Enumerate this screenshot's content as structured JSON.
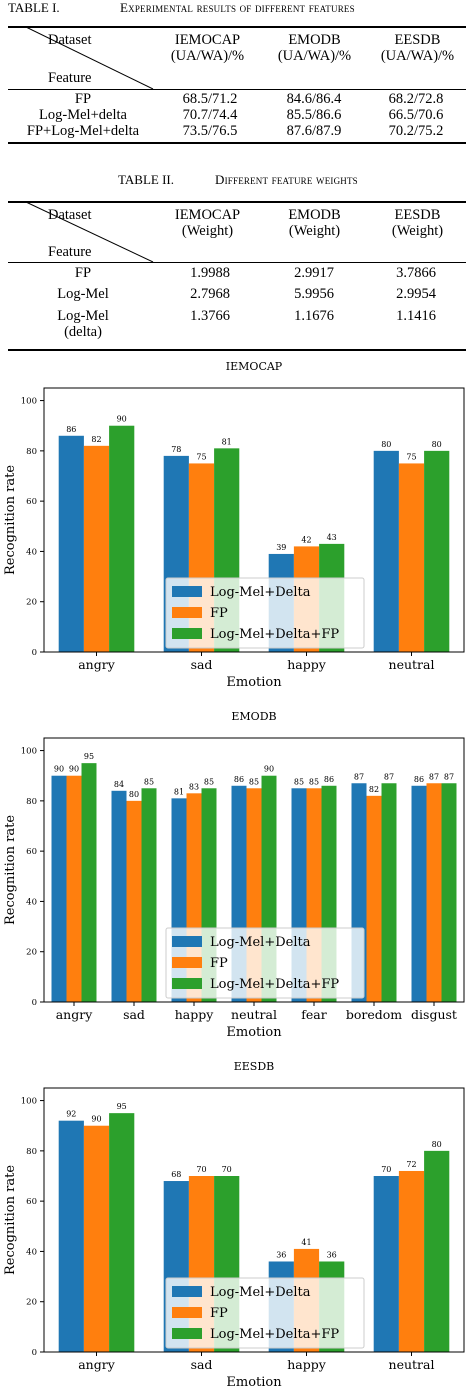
{
  "table1": {
    "caption_number": "TABLE I.",
    "caption_title": "Experimental results of different features",
    "corner_top": "Dataset",
    "corner_bottom": "Feature",
    "columns": [
      {
        "name": "IEMOCAP",
        "unit": "(UA/WA)/%"
      },
      {
        "name": "EMODB",
        "unit": "(UA/WA)/%"
      },
      {
        "name": "EESDB",
        "unit": "(UA/WA)/%"
      }
    ],
    "rows": [
      {
        "feature": "FP",
        "values": [
          "68.5/71.2",
          "84.6/86.4",
          "68.2/72.8"
        ]
      },
      {
        "feature": "Log-Mel+delta",
        "values": [
          "70.7/74.4",
          "85.5/86.6",
          "66.5/70.6"
        ]
      },
      {
        "feature": "FP+Log-Mel+delta",
        "values": [
          "73.5/76.5",
          "87.6/87.9",
          "70.2/75.2"
        ]
      }
    ]
  },
  "table2": {
    "caption_number": "TABLE II.",
    "caption_title": "Different feature weights",
    "corner_top": "Dataset",
    "corner_bottom": "Feature",
    "columns": [
      {
        "name": "IEMOCAP",
        "unit": "(Weight)"
      },
      {
        "name": "EMODB",
        "unit": "(Weight)"
      },
      {
        "name": "EESDB",
        "unit": "(Weight)"
      }
    ],
    "rows": [
      {
        "feature": "FP",
        "values": [
          "1.9988",
          "2.9917",
          "3.7866"
        ]
      },
      {
        "feature": "Log-Mel",
        "values": [
          "2.7968",
          "5.9956",
          "2.9954"
        ]
      },
      {
        "feature_line1": "Log-Mel",
        "feature_line2": "(delta)",
        "values": [
          "1.3766",
          "1.1676",
          "1.1416"
        ]
      }
    ]
  },
  "colors": {
    "s1": "#1f77b4",
    "s2": "#ff7f0e",
    "s3": "#2ca02c"
  },
  "chart_data": [
    {
      "type": "bar",
      "title": "IEMOCAP",
      "xlabel": "Emotion",
      "ylabel": "Recognition rate",
      "ylim": [
        0,
        105
      ],
      "yticks": [
        0,
        20,
        40,
        60,
        80,
        100
      ],
      "legend_position": "lower-center",
      "categories": [
        "angry",
        "sad",
        "happy",
        "neutral"
      ],
      "series": [
        {
          "name": "Log-Mel+Delta",
          "values": [
            86,
            78,
            39,
            80
          ]
        },
        {
          "name": "FP",
          "values": [
            82,
            75,
            42,
            75
          ]
        },
        {
          "name": "Log-Mel+Delta+FP",
          "values": [
            90,
            81,
            43,
            80
          ]
        }
      ]
    },
    {
      "type": "bar",
      "title": "EMODB",
      "xlabel": "Emotion",
      "ylabel": "Recognition rate",
      "ylim": [
        0,
        105
      ],
      "yticks": [
        0,
        20,
        40,
        60,
        80,
        100
      ],
      "legend_position": "lower-center",
      "categories": [
        "angry",
        "sad",
        "happy",
        "neutral",
        "fear",
        "boredom",
        "disgust"
      ],
      "series": [
        {
          "name": "Log-Mel+Delta",
          "values": [
            90,
            84,
            81,
            86,
            85,
            87,
            86
          ]
        },
        {
          "name": "FP",
          "values": [
            90,
            80,
            83,
            85,
            85,
            82,
            87
          ]
        },
        {
          "name": "Log-Mel+Delta+FP",
          "values": [
            95,
            85,
            85,
            90,
            86,
            87,
            87
          ]
        }
      ]
    },
    {
      "type": "bar",
      "title": "EESDB",
      "xlabel": "Emotion",
      "ylabel": "Recognition rate",
      "ylim": [
        0,
        105
      ],
      "yticks": [
        0,
        20,
        40,
        60,
        80,
        100
      ],
      "legend_position": "lower-center",
      "categories": [
        "angry",
        "sad",
        "happy",
        "neutral"
      ],
      "series": [
        {
          "name": "Log-Mel+Delta",
          "values": [
            92,
            68,
            36,
            70
          ]
        },
        {
          "name": "FP",
          "values": [
            90,
            70,
            41,
            72
          ]
        },
        {
          "name": "Log-Mel+Delta+FP",
          "values": [
            95,
            70,
            36,
            80
          ]
        }
      ]
    }
  ]
}
